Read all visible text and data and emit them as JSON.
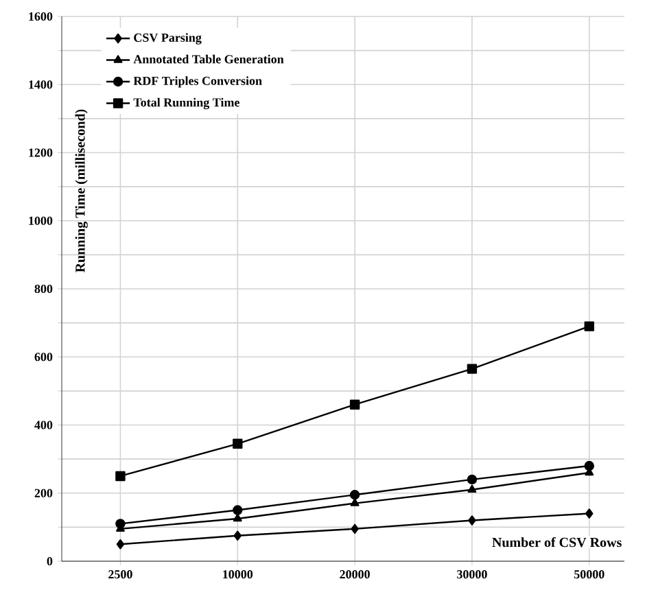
{
  "chart_data": {
    "type": "line",
    "xlabel": "Number of CSV Rows",
    "ylabel": "Running Time (millisecond)",
    "categories": [
      "2500",
      "10000",
      "20000",
      "30000",
      "50000"
    ],
    "series": [
      {
        "name": "CSV Parsing",
        "color": "#000000",
        "marker": "diamond",
        "values": [
          50,
          75,
          95,
          120,
          140
        ]
      },
      {
        "name": "Annotated Table Generation",
        "color": "#000000",
        "marker": "triangle",
        "values": [
          95,
          125,
          170,
          210,
          260
        ]
      },
      {
        "name": "RDF Triples Conversion",
        "color": "#000000",
        "marker": "circle",
        "values": [
          110,
          150,
          195,
          240,
          280
        ]
      },
      {
        "name": "Total Running Time",
        "color": "#000000",
        "marker": "square",
        "values": [
          250,
          345,
          460,
          565,
          690
        ]
      }
    ],
    "ylim": [
      0,
      1600
    ],
    "yticks": [
      0,
      200,
      400,
      600,
      800,
      1000,
      1200,
      1400,
      1600
    ],
    "grid": true,
    "legend": "top left",
    "line_style": "solid"
  }
}
